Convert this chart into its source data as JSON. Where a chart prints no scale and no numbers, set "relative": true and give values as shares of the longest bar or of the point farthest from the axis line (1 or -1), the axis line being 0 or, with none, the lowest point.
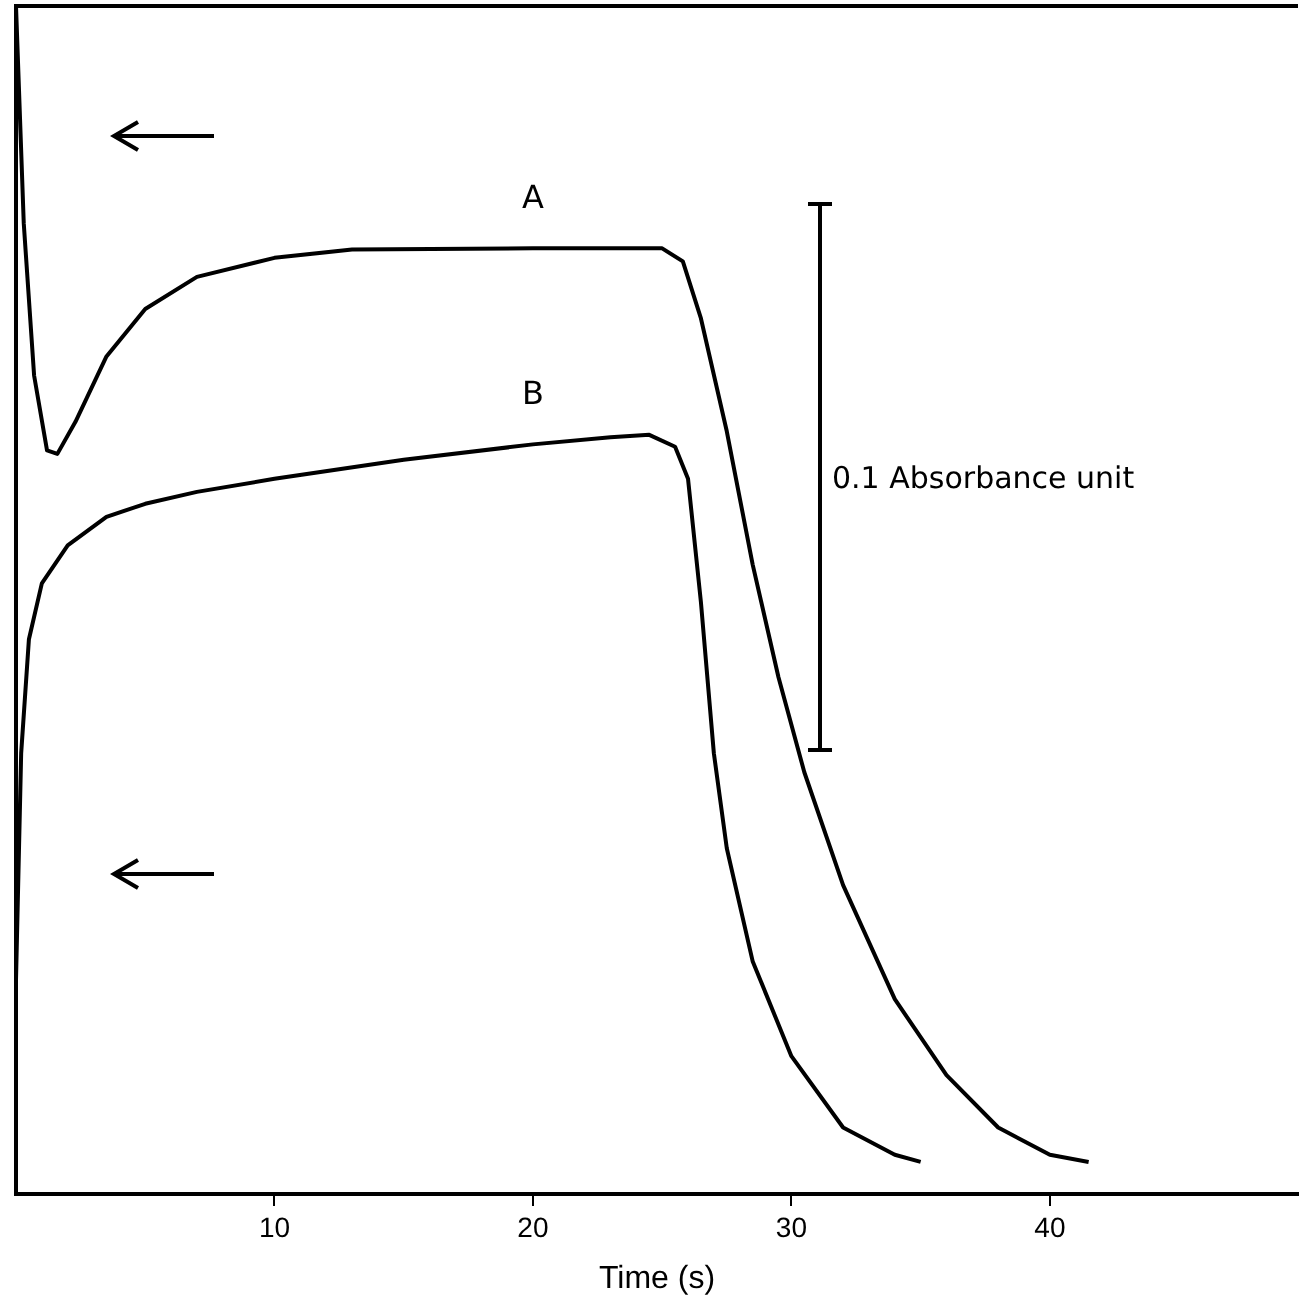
{
  "chart_data": {
    "type": "line",
    "relative": true,
    "xlabel": "Time (s)",
    "xlim": [
      0,
      49.6
    ],
    "xticks": [
      10,
      20,
      30,
      40
    ],
    "grid": false,
    "legend": false,
    "marker": "none",
    "line_style": "solid",
    "annotations": [
      "0.1 Absorbance unit"
    ],
    "series": [
      {
        "name": "A",
        "color": "#000000",
        "x": [
          0,
          0.3,
          0.7,
          1.2,
          1.6,
          2.3,
          3.5,
          5,
          7,
          10,
          13,
          20,
          25,
          25.8,
          26.5,
          27.5,
          28.5,
          29.5,
          30.5,
          32,
          34,
          36,
          38,
          40,
          41.5
        ],
        "values": [
          1.0,
          0.817,
          0.689,
          0.626,
          0.623,
          0.65,
          0.705,
          0.745,
          0.772,
          0.788,
          0.795,
          0.796,
          0.796,
          0.785,
          0.737,
          0.642,
          0.53,
          0.435,
          0.355,
          0.26,
          0.164,
          0.1,
          0.056,
          0.033,
          0.027
        ]
      },
      {
        "name": "B",
        "color": "#000000",
        "x": [
          0,
          0.2,
          0.5,
          1,
          2,
          3.5,
          5,
          7,
          10,
          15,
          20,
          23,
          24.5,
          25.5,
          26,
          26.5,
          27,
          27.5,
          28.5,
          30,
          32,
          34,
          35
        ],
        "values": [
          0.18,
          0.371,
          0.467,
          0.514,
          0.546,
          0.57,
          0.581,
          0.591,
          0.602,
          0.618,
          0.631,
          0.637,
          0.639,
          0.629,
          0.602,
          0.498,
          0.371,
          0.291,
          0.196,
          0.116,
          0.056,
          0.033,
          0.027
        ]
      }
    ]
  }
}
